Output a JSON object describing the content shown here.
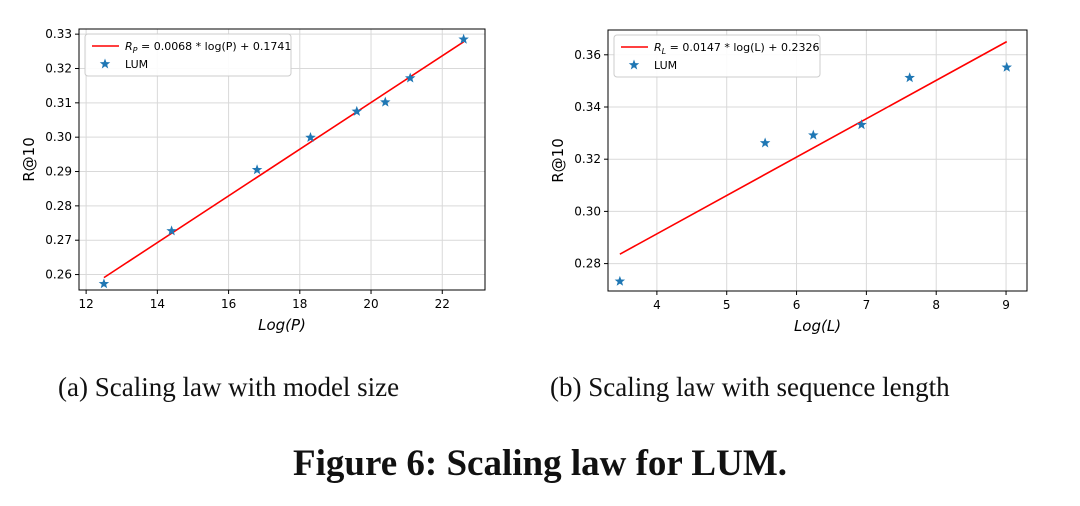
{
  "figure_caption": "Figure 6: Scaling law for LUM.",
  "subcaptions": [
    "(a) Scaling law with model size",
    "(b) Scaling law with sequence length"
  ],
  "colors": {
    "fit": "#ff0000",
    "points": "#1f77b4",
    "grid": "#d9d9d9"
  },
  "chart_data": [
    {
      "type": "scatter",
      "xlabel": "Log(P)",
      "ylabel": "R@10",
      "xlim": [
        11.8,
        23.2
      ],
      "ylim": [
        0.2555,
        0.3315
      ],
      "xticks": [
        12,
        14,
        16,
        18,
        20,
        22
      ],
      "yticks": [
        0.26,
        0.27,
        0.28,
        0.29,
        0.3,
        0.31,
        0.32,
        0.33
      ],
      "ytick_labels": [
        "0.26",
        "0.27",
        "0.28",
        "0.29",
        "0.30",
        "0.31",
        "0.32",
        "0.33"
      ],
      "grid": true,
      "legend_position": "top-left",
      "series": [
        {
          "name": "LUM",
          "marker": "star-icon",
          "x": [
            12.5,
            14.4,
            16.8,
            18.3,
            19.6,
            20.4,
            21.1,
            22.6
          ],
          "y": [
            0.2573,
            0.2727,
            0.2905,
            0.2999,
            0.3075,
            0.3102,
            0.3172,
            0.3285
          ]
        }
      ],
      "fit": {
        "label_prefix": "R",
        "label_sub": "P",
        "label_rest": " = 0.0068 * log(P) + 0.1741",
        "slope": 0.0068,
        "intercept": 0.1741,
        "x_range": [
          12.5,
          22.6
        ]
      }
    },
    {
      "type": "scatter",
      "xlabel": "Log(L)",
      "ylabel": "R@10",
      "xlim": [
        3.3,
        9.3
      ],
      "ylim": [
        0.2695,
        0.3695
      ],
      "xticks": [
        4,
        5,
        6,
        7,
        8,
        9
      ],
      "yticks": [
        0.28,
        0.3,
        0.32,
        0.34,
        0.36
      ],
      "ytick_labels": [
        "0.28",
        "0.30",
        "0.32",
        "0.34",
        "0.36"
      ],
      "grid": true,
      "legend_position": "top-left",
      "series": [
        {
          "name": "LUM",
          "marker": "star-icon",
          "x": [
            3.47,
            5.55,
            6.24,
            6.93,
            7.62,
            9.01
          ],
          "y": [
            0.2732,
            0.3262,
            0.3292,
            0.3332,
            0.3512,
            0.3552
          ]
        }
      ],
      "fit": {
        "label_prefix": "R",
        "label_sub": "L",
        "label_rest": " = 0.0147 * log(L) + 0.2326",
        "slope": 0.0147,
        "intercept": 0.2326,
        "x_range": [
          3.47,
          9.01
        ]
      }
    }
  ]
}
